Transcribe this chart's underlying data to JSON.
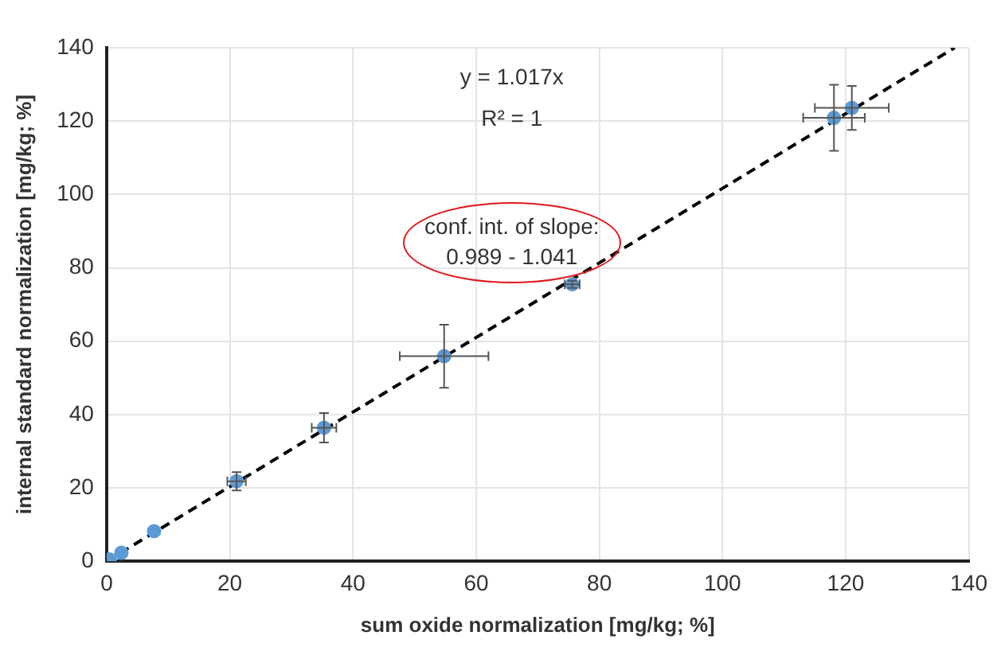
{
  "chart_data": {
    "type": "scatter",
    "xlabel": "sum oxide normalization [mg/kg; %]",
    "ylabel": "internal standard normalization [mg/kg; %]",
    "xlim": [
      0,
      140
    ],
    "xticks": [
      0,
      20,
      40,
      60,
      80,
      100,
      120,
      140
    ],
    "ylim": [
      0,
      140
    ],
    "yticks": [
      0,
      20,
      40,
      60,
      80,
      100,
      120,
      140
    ],
    "grid": true,
    "marker": "circle",
    "annotations": [
      "y = 1.017x",
      "R² = 1",
      "conf. int. of slope:\n0.989 - 1.041"
    ],
    "series": [
      {
        "color": "#5b9bd5",
        "x": [
          0.5,
          2.4,
          7.7,
          21.1,
          35.3,
          54.8,
          75.6,
          118.1,
          121
        ],
        "values": [
          0.5,
          2.3,
          8.2,
          21.8,
          36.4,
          55.9,
          75.5,
          120.9,
          123.6
        ],
        "errors": [
          null,
          null,
          null,
          2.5,
          4,
          8.6,
          1,
          9,
          6
        ],
        "xerrors": [
          null,
          null,
          null,
          1.5,
          2,
          7.2,
          1.2,
          5,
          6
        ]
      },
      {
        "type": "line",
        "color": "#000000",
        "line_style": "dashed",
        "marker": "none",
        "x": [
          0,
          137.7
        ],
        "values": [
          0,
          140
        ]
      }
    ]
  }
}
